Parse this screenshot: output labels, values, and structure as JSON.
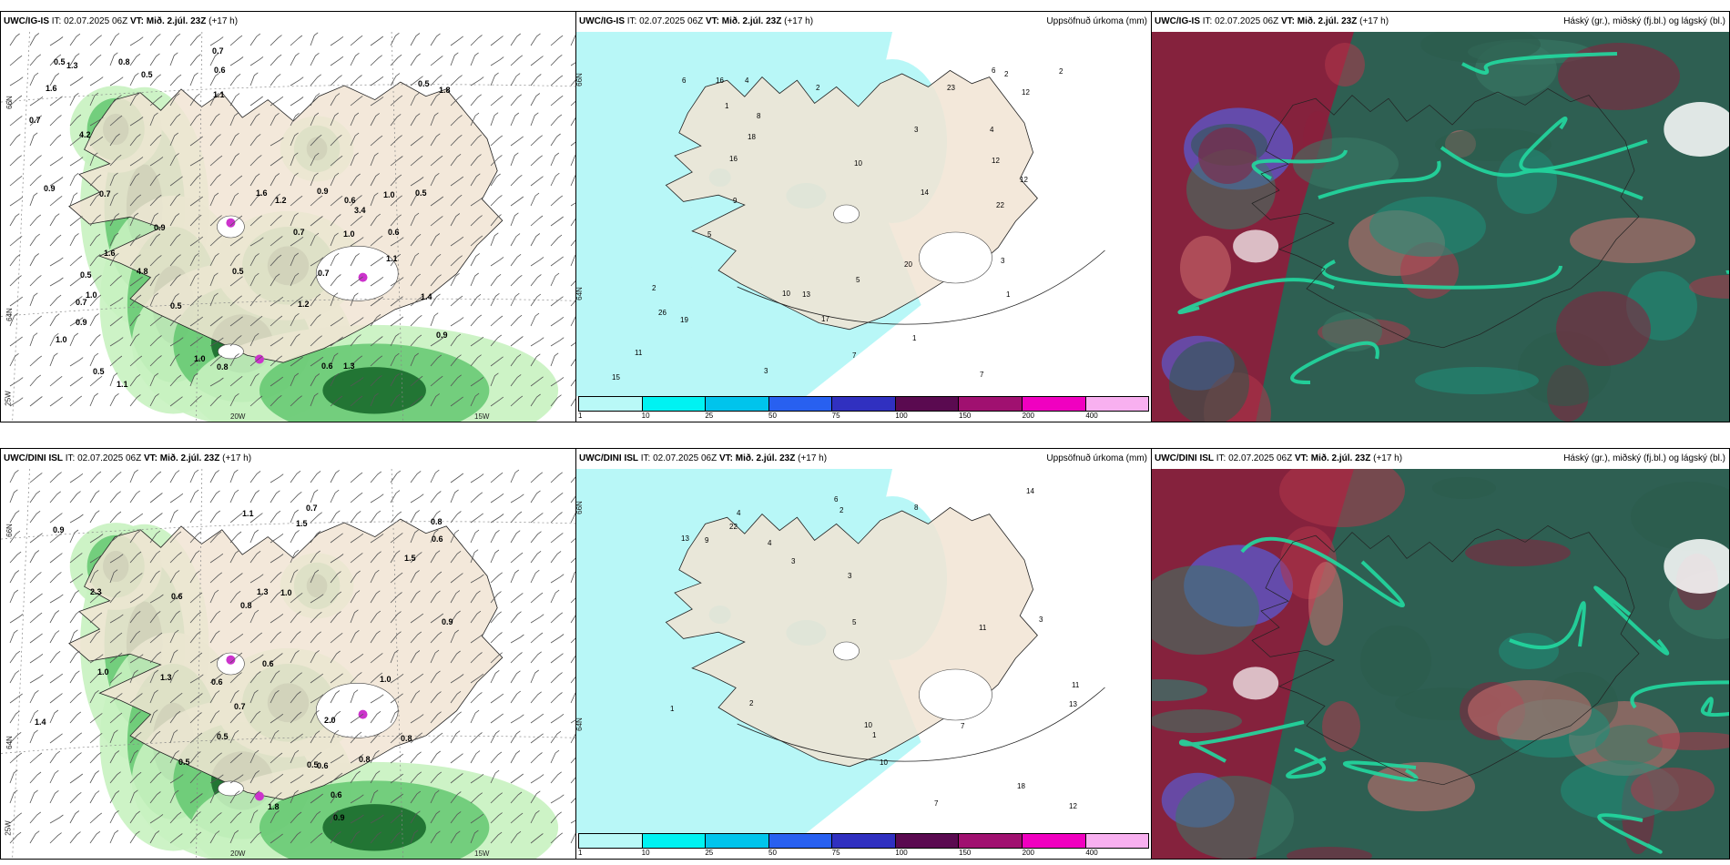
{
  "panels": [
    {
      "model": "UWC/IG-IS",
      "it_label": "IT:",
      "it_value": "02.07.2025 06Z",
      "vt_label": "VT:",
      "vt_value": "Mið. 2.júl. 23Z",
      "lead": "(+17 h)",
      "right_title": "",
      "axis": {
        "lat66": "66N",
        "lat64": "64N",
        "lon25": "25W",
        "lon20": "20W",
        "lon15": "15W"
      },
      "values": [
        "0.6",
        "1.0",
        "0.7",
        "0.5",
        "1.0",
        "0.7",
        "0.7",
        "0.9",
        "1.1",
        "0.5",
        "0.8",
        "0.8",
        "1.3",
        "4.2",
        "1.8",
        "3.4",
        "1.1",
        "0.6",
        "0.7",
        "1.3",
        "1.6",
        "0.5",
        "1.0",
        "4.8",
        "0.5",
        "0.9",
        "0.7",
        "1.6",
        "0.9",
        "0.5",
        "1.0",
        "1.2",
        "0.6",
        "0.7",
        "1.1",
        "0.5",
        "0.9",
        "0.5",
        "1.0",
        "0.9",
        "0.6",
        "1.6",
        "1.2",
        "1.4",
        "0.5"
      ]
    },
    {
      "model": "UWC/IG-IS",
      "it_label": "IT:",
      "it_value": "02.07.2025 06Z",
      "vt_label": "VT:",
      "vt_value": "Mið. 2.júl. 23Z",
      "lead": "(+17 h)",
      "right_title": "Uppsöfnuð úrkoma (mm)",
      "axis": {
        "lat66": "66N",
        "lat64": "64N"
      },
      "values": [
        "2",
        "1",
        "2",
        "3",
        "4",
        "7",
        "6",
        "7",
        "1",
        "2",
        "5",
        "3",
        "11",
        "10",
        "12",
        "15",
        "14",
        "20",
        "18",
        "23",
        "16",
        "16",
        "12",
        "26",
        "19",
        "17",
        "10",
        "13",
        "22",
        "12",
        "8",
        "9",
        "4",
        "5",
        "6",
        "3",
        "2",
        "1"
      ],
      "colorbar": [
        "1",
        "10",
        "25",
        "50",
        "75",
        "100",
        "150",
        "200",
        "400"
      ]
    },
    {
      "model": "UWC/IG-IS",
      "it_label": "IT:",
      "it_value": "02.07.2025 06Z",
      "vt_label": "VT:",
      "vt_value": "Mið. 2.júl. 23Z",
      "lead": "(+17 h)",
      "right_title": "Háský (gr.), miðský (fj.bl.) og lágský (bl.)"
    },
    {
      "model": "UWC/DINI ISL",
      "it_label": "IT:",
      "it_value": "02.07.2025 06Z",
      "vt_label": "VT:",
      "vt_value": "Mið. 2.júl. 23Z",
      "lead": "(+17 h)",
      "right_title": "",
      "axis": {
        "lat66": "66N",
        "lat64": "64N",
        "lon25": "25W",
        "lon20": "20W",
        "lon15": "15W"
      },
      "values": [
        "0.7",
        "0.8",
        "2.3",
        "0.8",
        "1.3",
        "0.9",
        "0.8",
        "0.5",
        "0.9",
        "1.0",
        "1.4",
        "1.1",
        "1.5",
        "0.6",
        "0.6",
        "0.5",
        "0.6",
        "2.0",
        "1.8",
        "0.6",
        "0.8",
        "0.6",
        "0.7",
        "1.3",
        "0.5",
        "0.6",
        "1.0",
        "1.5",
        "1.0",
        "0.9"
      ]
    },
    {
      "model": "UWC/DINI ISL",
      "it_label": "IT:",
      "it_value": "02.07.2025 06Z",
      "vt_label": "VT:",
      "vt_value": "Mið. 2.júl. 23Z",
      "lead": "(+17 h)",
      "right_title": "Uppsöfnuð úrkoma (mm)",
      "axis": {
        "lat66": "66N",
        "lat64": "64N"
      },
      "values": [
        "1",
        "3",
        "13",
        "4",
        "2",
        "11",
        "7",
        "14",
        "22",
        "18",
        "10",
        "11",
        "12",
        "8",
        "9",
        "3",
        "5",
        "4",
        "6",
        "2",
        "7",
        "1",
        "3",
        "10",
        "13"
      ],
      "colorbar": [
        "1",
        "10",
        "25",
        "50",
        "75",
        "100",
        "150",
        "200",
        "400"
      ]
    },
    {
      "model": "UWC/DINI ISL",
      "it_label": "IT:",
      "it_value": "02.07.2025 06Z",
      "vt_label": "VT:",
      "vt_value": "Mið. 2.júl. 23Z",
      "lead": "(+17 h)",
      "right_title": "Háský (gr.), miðský (fj.bl.) og lágský (bl.)"
    }
  ],
  "colors": {
    "land": "#f1e4d4",
    "precip_light": "#b8f7f7",
    "precip_mid": "#7ee8ee",
    "cloud_high": "#2b5b4a",
    "cloud_mid": "#8a1f3c",
    "cloud_low": "#5a5ad0",
    "cloud_edge": "#22d9a0",
    "colorbar": [
      "#b9f9f7",
      "#00f2f2",
      "#00c4ec",
      "#2860f0",
      "#3030c0",
      "#5a0a50",
      "#a01070",
      "#f000c0",
      "#f8b0f0"
    ]
  }
}
